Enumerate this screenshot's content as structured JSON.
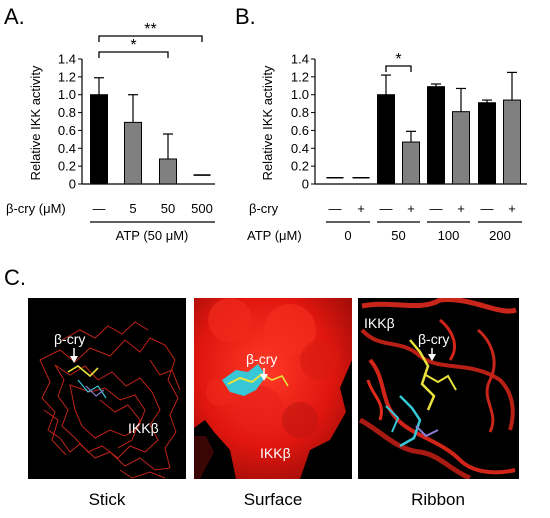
{
  "panel_labels": {
    "a": "A.",
    "b": "B.",
    "c": "C."
  },
  "chart_data": [
    {
      "type": "bar",
      "panel": "A.",
      "ylabel": "Relative IKK activity",
      "ylim": [
        0,
        1.4
      ],
      "yticks": [
        "0",
        "0.2",
        "0.4",
        "0.6",
        "0.8",
        "1.0",
        "1.2",
        "1.4"
      ],
      "row_label": "β-cry (μM)",
      "categories": [
        "—",
        "5",
        "50",
        "500"
      ],
      "values": [
        1.0,
        0.69,
        0.28,
        0.1
      ],
      "errors": [
        0.19,
        0.31,
        0.28,
        0.0
      ],
      "colors": [
        "#000000",
        "#808080",
        "#808080",
        "#000000"
      ],
      "group_label": "ATP (50 μM)",
      "significance": [
        {
          "from": 0,
          "to": 2,
          "label": "*"
        },
        {
          "from": 0,
          "to": 3,
          "label": "**"
        }
      ]
    },
    {
      "type": "bar",
      "panel": "B.",
      "ylabel": "Relative IKK activity",
      "ylim": [
        0,
        1.4
      ],
      "yticks": [
        "0",
        "0.2",
        "0.4",
        "0.6",
        "0.8",
        "1.0",
        "1.2",
        "1.4"
      ],
      "row1_label": "β-cry",
      "row2_label": "ATP (μM)",
      "categories": [
        "—",
        "+",
        "—",
        "+",
        "—",
        "+",
        "—",
        "+"
      ],
      "atp_groups": [
        "0",
        "50",
        "100",
        "200"
      ],
      "values": [
        0.07,
        0.07,
        1.0,
        0.47,
        1.09,
        0.81,
        0.91,
        0.94
      ],
      "errors": [
        0.0,
        0.0,
        0.22,
        0.12,
        0.03,
        0.26,
        0.03,
        0.31
      ],
      "colors": [
        "#000000",
        "#000000",
        "#000000",
        "#808080",
        "#000000",
        "#808080",
        "#000000",
        "#808080"
      ],
      "significance": [
        {
          "from": 2,
          "to": 3,
          "label": "*"
        }
      ]
    }
  ],
  "structures": [
    {
      "caption": "Stick",
      "labels": [
        "β-cry",
        "IKKβ"
      ]
    },
    {
      "caption": "Surface",
      "labels": [
        "β-cry",
        "IKKβ"
      ]
    },
    {
      "caption": "Ribbon",
      "labels": [
        "IKKβ",
        "β-cry"
      ]
    }
  ],
  "colors": {
    "background_dark": "#000000",
    "protein_red": "#e8251c",
    "ligand_yellow": "#e8e23a",
    "ligand_cyan": "#37c7d6"
  }
}
